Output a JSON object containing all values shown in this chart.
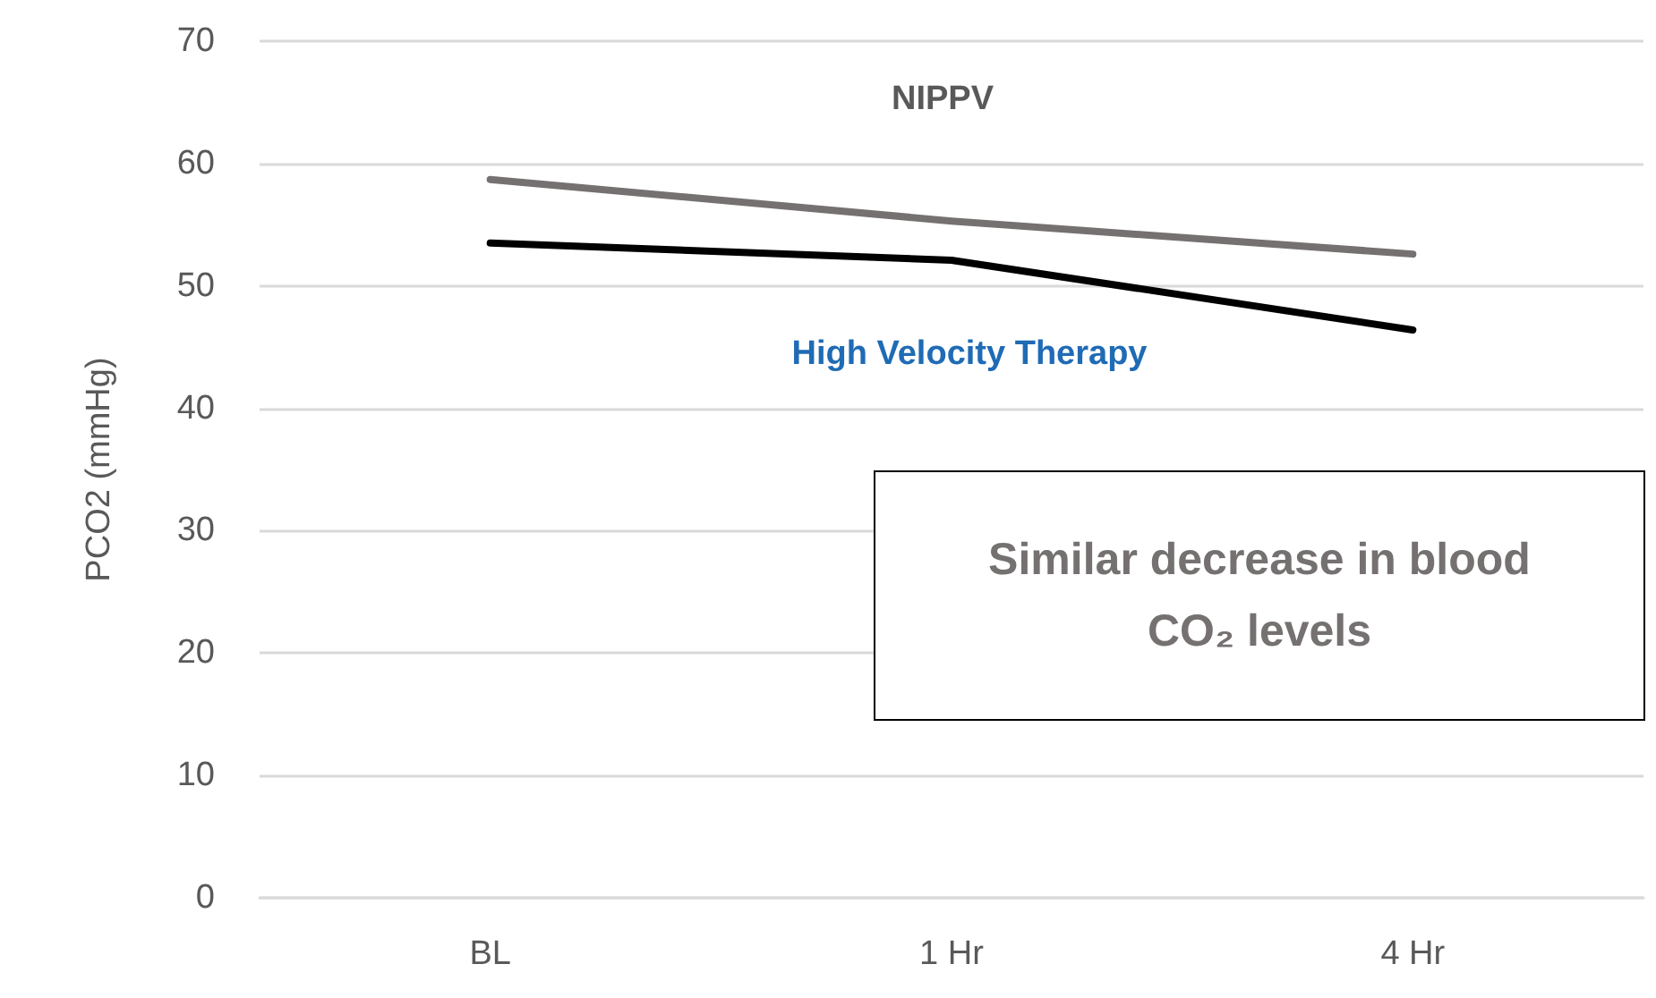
{
  "chart_data": {
    "type": "line",
    "ylabel": "PCO2 (mmHg)",
    "categories": [
      "BL",
      "1 Hr",
      "4 Hr"
    ],
    "series": [
      {
        "name": "NIPPV",
        "color": "#767171",
        "values": [
          58.7,
          55.3,
          52.6
        ]
      },
      {
        "name": "High Velocity Therapy",
        "color": "#000000",
        "values": [
          53.5,
          52.1,
          46.4
        ]
      }
    ],
    "ylim": [
      0,
      70
    ],
    "yticks": [
      0,
      10,
      20,
      30,
      40,
      50,
      60,
      70
    ],
    "grid": "y",
    "legend": false,
    "marker": "none",
    "line_style": "solid",
    "annotations": [
      "Similar decrease in blood CO₂ levels"
    ]
  }
}
